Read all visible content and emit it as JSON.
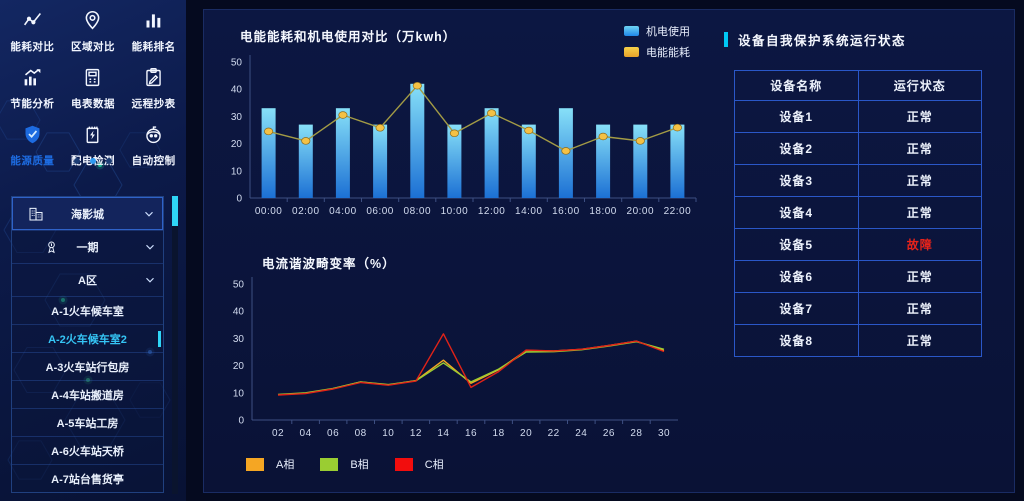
{
  "sidebar": {
    "menu": [
      {
        "name": "energy-compare",
        "label": "能耗对比",
        "icon": "line-chart",
        "active": false
      },
      {
        "name": "region-compare",
        "label": "区域对比",
        "icon": "location-pin",
        "active": false
      },
      {
        "name": "energy-ranking",
        "label": "能耗排名",
        "icon": "bar-chart",
        "active": false
      },
      {
        "name": "energy-saving-analysis",
        "label": "节能分析",
        "icon": "trend-up",
        "active": false
      },
      {
        "name": "meter-data",
        "label": "电表数据",
        "icon": "meter",
        "active": false
      },
      {
        "name": "remote-meter-reading",
        "label": "远程抄表",
        "icon": "clipboard",
        "active": false
      },
      {
        "name": "energy-quality",
        "label": "能源质量",
        "icon": "shield-check",
        "active": true
      },
      {
        "name": "power-distribution-check",
        "label": "配电检测",
        "icon": "power-meter",
        "active": false
      },
      {
        "name": "auto-control",
        "label": "自动控制",
        "icon": "robot",
        "active": false
      }
    ],
    "pagination": {
      "count": 3,
      "active": 1
    }
  },
  "tree": {
    "items": [
      {
        "name": "site-haiyingcheng",
        "label": "海影城",
        "icon": "building",
        "chevron": true,
        "boxed": true,
        "selected": false
      },
      {
        "name": "phase-one",
        "label": "一期",
        "icon": "medal",
        "chevron": true,
        "boxed": false,
        "selected": false
      },
      {
        "name": "zone-a",
        "label": "A区",
        "icon": "",
        "chevron": true,
        "boxed": false,
        "selected": false
      },
      {
        "name": "a1-waiting-room",
        "label": "A-1火车候车室",
        "icon": "",
        "chevron": false,
        "boxed": false,
        "selected": false
      },
      {
        "name": "a2-waiting-room-2",
        "label": "A-2火车候车室2",
        "icon": "",
        "chevron": false,
        "boxed": false,
        "selected": true
      },
      {
        "name": "a3-luggage-room",
        "label": "A-3火车站行包房",
        "icon": "",
        "chevron": false,
        "boxed": false,
        "selected": false
      },
      {
        "name": "a4-switch-house",
        "label": "A-4车站搬道房",
        "icon": "",
        "chevron": false,
        "boxed": false,
        "selected": false
      },
      {
        "name": "a5-work-house",
        "label": "A-5车站工房",
        "icon": "",
        "chevron": false,
        "boxed": false,
        "selected": false
      },
      {
        "name": "a6-footbridge",
        "label": "A-6火车站天桥",
        "icon": "",
        "chevron": false,
        "boxed": false,
        "selected": false
      },
      {
        "name": "a7-platform-kiosk",
        "label": "A-7站台售货亭",
        "icon": "",
        "chevron": false,
        "boxed": false,
        "selected": false
      }
    ]
  },
  "chart_data": [
    {
      "type": "bar",
      "title": "电能能耗和机电使用对比（万kwh）",
      "categories": [
        "00:00",
        "02:00",
        "04:00",
        "06:00",
        "08:00",
        "10:00",
        "12:00",
        "14:00",
        "16:00",
        "18:00",
        "20:00",
        "22:00"
      ],
      "series": [
        {
          "name": "机电使用",
          "kind": "bar",
          "color": "#45c8f0",
          "legend_grad": [
            "#6fd4f4",
            "#1f87e8"
          ],
          "values": [
            33,
            27,
            33,
            27,
            42,
            27,
            33,
            27,
            33,
            27,
            27,
            27
          ]
        },
        {
          "name": "电能能耗",
          "kind": "line",
          "color": "#a39b45",
          "line_color": "#a39b45",
          "marker": "#f4c145",
          "legend_grad": [
            "#f6d14a",
            "#e8a22a"
          ],
          "values": [
            24.5,
            21,
            30.5,
            25.8,
            41.3,
            23.8,
            31.2,
            24.8,
            17.3,
            22.6,
            21,
            25.9
          ]
        }
      ],
      "ylim": [
        0,
        50
      ],
      "yticks": [
        0,
        10,
        20,
        30,
        40,
        50
      ],
      "legend_position": "top-right",
      "grid": false
    },
    {
      "type": "line",
      "title": "电流谐波畸变率（%）",
      "categories": [
        "02",
        "04",
        "06",
        "08",
        "10",
        "12",
        "14",
        "16",
        "18",
        "20",
        "22",
        "24",
        "26",
        "28",
        "30"
      ],
      "series": [
        {
          "name": "A相",
          "kind": "line",
          "color": "#f5a623",
          "values": [
            9.3,
            9.8,
            11.5,
            14,
            12.9,
            14.5,
            22,
            13.5,
            18.5,
            25.6,
            25.4,
            26,
            27.4,
            29,
            25.5
          ]
        },
        {
          "name": "B相",
          "kind": "line",
          "color": "#9acd32",
          "values": [
            9.4,
            10,
            11.6,
            14,
            13,
            14.4,
            21,
            14,
            18.7,
            25,
            25.1,
            25.8,
            27.2,
            28.8,
            26
          ]
        },
        {
          "name": "C相",
          "kind": "line",
          "color": "#e02318",
          "legend_color": "#f20d0d",
          "values": [
            9.2,
            9.7,
            11.4,
            13.8,
            12.8,
            14.3,
            31.7,
            12,
            17.8,
            25.7,
            25.4,
            26,
            27.4,
            29,
            25.2
          ]
        }
      ],
      "ylim": [
        0,
        50
      ],
      "yticks": [
        0,
        10,
        20,
        30,
        40,
        50
      ],
      "legend_position": "bottom",
      "grid": false
    }
  ],
  "device_panel": {
    "title": "设备自我保护系统运行状态",
    "table": {
      "headers": [
        "设备名称",
        "运行状态"
      ],
      "rows": [
        {
          "device": "设备1",
          "status": "正常",
          "fault": false
        },
        {
          "device": "设备2",
          "status": "正常",
          "fault": false
        },
        {
          "device": "设备3",
          "status": "正常",
          "fault": false
        },
        {
          "device": "设备4",
          "status": "正常",
          "fault": false
        },
        {
          "device": "设备5",
          "status": "故障",
          "fault": true
        },
        {
          "device": "设备6",
          "status": "正常",
          "fault": false
        },
        {
          "device": "设备7",
          "status": "正常",
          "fault": false
        },
        {
          "device": "设备8",
          "status": "正常",
          "fault": false
        }
      ]
    },
    "colors": {
      "normal": "#edf2fc",
      "fault": "#e8231a",
      "marker": "#00c8f5"
    }
  }
}
